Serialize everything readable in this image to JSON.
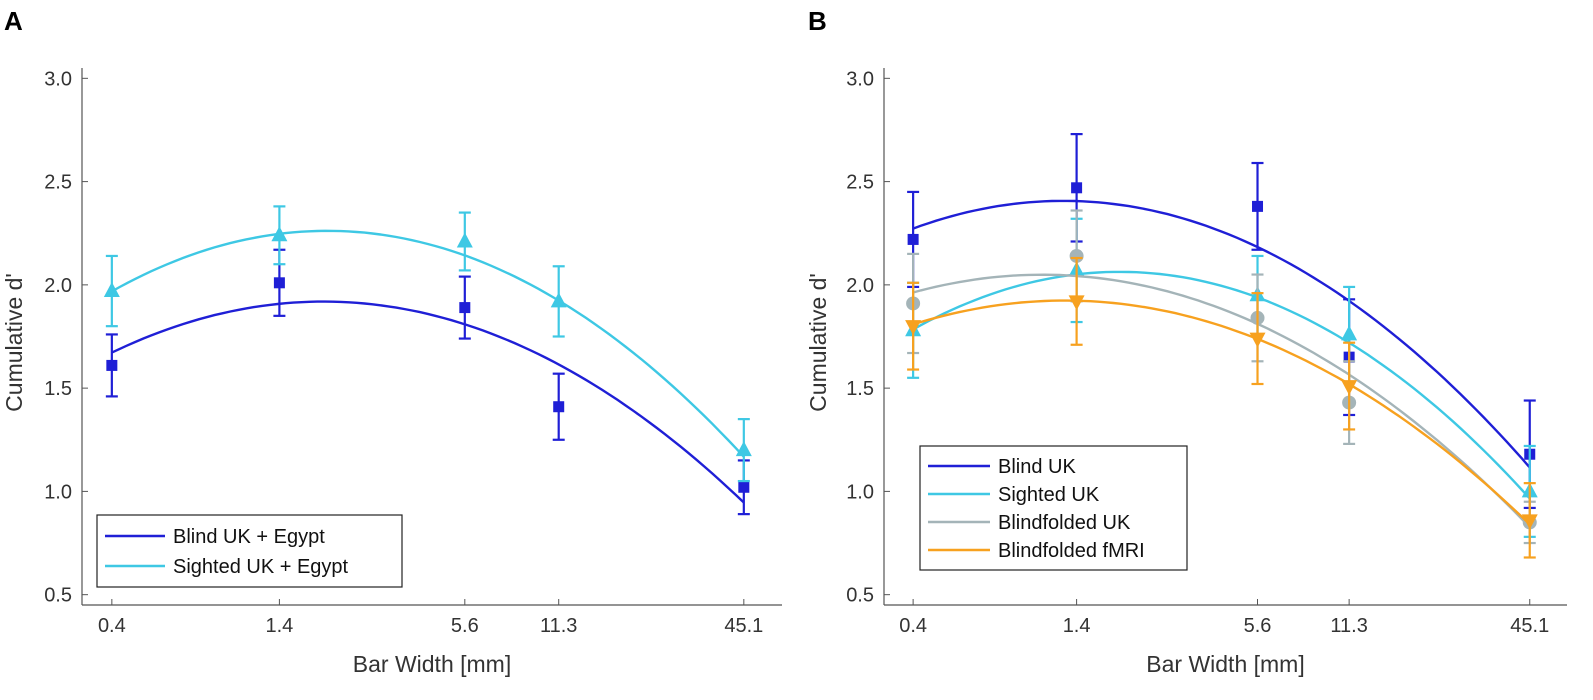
{
  "chart_data": [
    {
      "panel": "A",
      "type": "line",
      "x_scale": "log",
      "xlabel": "Bar Width [mm]",
      "ylabel": "Cumulative d'",
      "x_ticks": [
        0.4,
        1.4,
        5.6,
        11.3,
        45.1
      ],
      "x_tick_labels": [
        "0.4",
        "1.4",
        "5.6",
        "11.3",
        "45.1"
      ],
      "ylim": [
        0.45,
        3.05
      ],
      "y_ticks": [
        0.5,
        1.0,
        1.5,
        2.0,
        2.5,
        3.0
      ],
      "y_tick_labels": [
        "0.5",
        "1.0",
        "1.5",
        "2.0",
        "2.5",
        "3.0"
      ],
      "legend_position": "bottom-left",
      "series": [
        {
          "name": "Blind UK + Egypt",
          "color": "#1f1fd6",
          "marker": "square",
          "x": [
            0.4,
            1.4,
            5.6,
            11.3,
            45.1
          ],
          "y": [
            1.61,
            2.01,
            1.89,
            1.41,
            1.02
          ],
          "err": [
            0.15,
            0.16,
            0.15,
            0.16,
            0.13
          ],
          "fit": [
            1.67,
            1.91,
            1.82,
            1.6,
            0.95
          ]
        },
        {
          "name": "Sighted UK + Egypt",
          "color": "#3ec8e4",
          "marker": "triangle-up",
          "x": [
            0.4,
            1.4,
            5.6,
            11.3,
            45.1
          ],
          "y": [
            1.97,
            2.24,
            2.21,
            1.92,
            1.2
          ],
          "err": [
            0.17,
            0.14,
            0.14,
            0.17,
            0.15
          ],
          "fit": [
            1.97,
            2.24,
            2.16,
            1.91,
            1.17
          ]
        }
      ]
    },
    {
      "panel": "B",
      "type": "line",
      "x_scale": "log",
      "xlabel": "Bar Width [mm]",
      "ylabel": "Cumulative d'",
      "x_ticks": [
        0.4,
        1.4,
        5.6,
        11.3,
        45.1
      ],
      "x_tick_labels": [
        "0.4",
        "1.4",
        "5.6",
        "11.3",
        "45.1"
      ],
      "ylim": [
        0.45,
        3.05
      ],
      "y_ticks": [
        0.5,
        1.0,
        1.5,
        2.0,
        2.5,
        3.0
      ],
      "y_tick_labels": [
        "0.5",
        "1.0",
        "1.5",
        "2.0",
        "2.5",
        "3.0"
      ],
      "legend_position": "bottom-left",
      "series": [
        {
          "name": "Blind UK",
          "color": "#1f1fd6",
          "marker": "square",
          "x": [
            0.4,
            1.4,
            5.6,
            11.3,
            45.1
          ],
          "y": [
            2.22,
            2.47,
            2.38,
            1.65,
            1.18
          ],
          "err": [
            0.23,
            0.26,
            0.21,
            0.28,
            0.26
          ],
          "fit": [
            2.27,
            2.41,
            2.19,
            1.91,
            1.12
          ]
        },
        {
          "name": "Sighted UK",
          "color": "#3ec8e4",
          "marker": "triangle-up",
          "x": [
            0.4,
            1.4,
            5.6,
            11.3,
            45.1
          ],
          "y": [
            1.78,
            2.07,
            1.95,
            1.76,
            1.0
          ],
          "err": [
            0.23,
            0.25,
            0.19,
            0.23,
            0.22
          ],
          "fit": [
            1.78,
            2.06,
            1.94,
            1.71,
            0.97
          ]
        },
        {
          "name": "Blindfolded UK",
          "color": "#a4b4b8",
          "marker": "circle",
          "x": [
            0.4,
            1.4,
            5.6,
            11.3,
            45.1
          ],
          "y": [
            1.91,
            2.14,
            1.84,
            1.43,
            0.85
          ],
          "err": [
            0.24,
            0.22,
            0.21,
            0.2,
            0.1
          ],
          "fit": [
            1.96,
            2.05,
            1.81,
            1.56,
            0.83
          ]
        },
        {
          "name": "Blindfolded fMRI",
          "color": "#f7a11f",
          "marker": "triangle-down",
          "x": [
            0.4,
            1.4,
            5.6,
            11.3,
            45.1
          ],
          "y": [
            1.8,
            1.92,
            1.74,
            1.51,
            0.86
          ],
          "err": [
            0.21,
            0.21,
            0.22,
            0.21,
            0.18
          ],
          "fit": [
            1.81,
            1.92,
            1.74,
            1.52,
            0.84
          ]
        }
      ]
    }
  ]
}
